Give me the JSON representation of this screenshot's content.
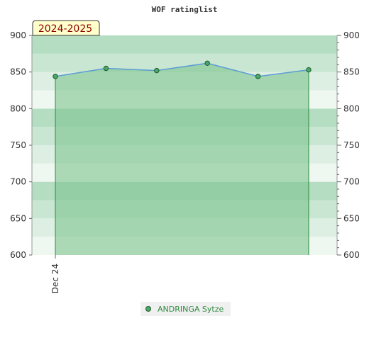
{
  "chart_data": {
    "type": "area",
    "title": "WOF ratinglist",
    "season_label": "2024-2025",
    "ylim": [
      600,
      900
    ],
    "y_ticks": [
      600,
      650,
      700,
      750,
      800,
      850,
      900
    ],
    "x_tick_labels": [
      "Dec 24"
    ],
    "grid": true,
    "legend_position": "bottom-center",
    "series": [
      {
        "name": "ANDRINGA Sytze",
        "values": [
          844,
          855,
          852,
          862,
          844,
          853
        ]
      }
    ],
    "colors": {
      "line": "#5b9bd5",
      "fill": "#7dc48f",
      "marker": "#4aa86a",
      "legend_text": "#2e8b3e",
      "badge_bg": "#ffffcc",
      "badge_text": "#8b0000"
    }
  }
}
